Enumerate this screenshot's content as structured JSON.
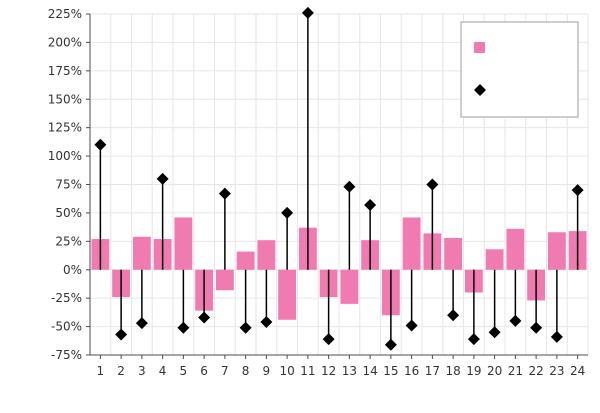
{
  "chart_data": {
    "type": "bar",
    "title": "",
    "xlabel": "",
    "ylabel": "",
    "categories": [
      "1",
      "2",
      "3",
      "4",
      "5",
      "6",
      "7",
      "8",
      "9",
      "10",
      "11",
      "12",
      "13",
      "14",
      "15",
      "16",
      "17",
      "18",
      "19",
      "20",
      "21",
      "22",
      "23",
      "24"
    ],
    "series": [
      {
        "kind": "bar",
        "values": [
          27,
          -24,
          29,
          27,
          46,
          -36,
          -18,
          16,
          26,
          -44,
          37,
          -24,
          -30,
          26,
          -40,
          46,
          32,
          28,
          -20,
          18,
          36,
          -27,
          33,
          34
        ],
        "color": "#f07bb0"
      },
      {
        "kind": "lollipop",
        "values": [
          110,
          -57,
          -47,
          80,
          -51,
          -42,
          67,
          -51,
          -46,
          50,
          226,
          -61,
          73,
          57,
          -66,
          -49,
          75,
          -40,
          -61,
          -55,
          -45,
          -51,
          -59,
          70
        ],
        "color": "#000000",
        "marker": "diamond"
      }
    ],
    "ylim": [
      -75,
      225
    ],
    "yticks": [
      -75,
      -50,
      -25,
      0,
      25,
      50,
      75,
      100,
      125,
      150,
      175,
      200,
      225
    ],
    "ytick_suffix": "%",
    "grid": true,
    "legend": {
      "position": "top-right",
      "entries": [
        {
          "marker": "square",
          "color": "#f07bb0",
          "label": ""
        },
        {
          "marker": "diamond",
          "color": "#000000",
          "label": ""
        }
      ]
    }
  }
}
